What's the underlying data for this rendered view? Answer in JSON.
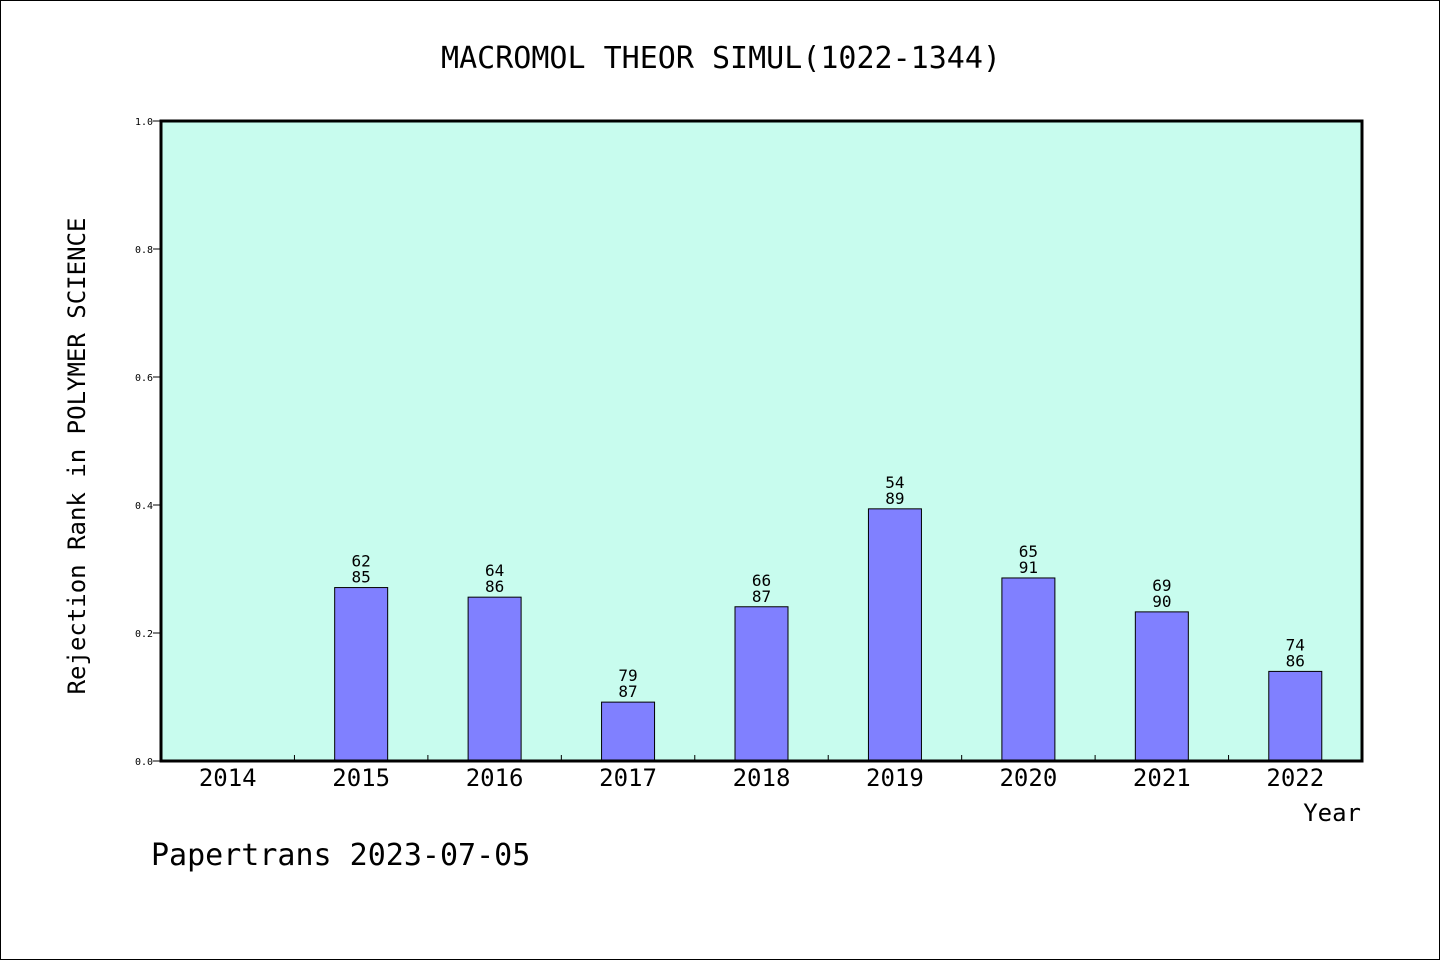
{
  "chart_data": {
    "type": "bar",
    "title": "MACROMOL THEOR SIMUL(1022-1344)",
    "xlabel": "Year",
    "ylabel": "Rejection Rank in POLYMER SCIENCE",
    "ylim": [
      0,
      1
    ],
    "yticks": [
      "0.0",
      "0.2",
      "0.4",
      "0.6",
      "0.8",
      "1.0"
    ],
    "categories": [
      "2014",
      "2015",
      "2016",
      "2017",
      "2018",
      "2019",
      "2020",
      "2021",
      "2022"
    ],
    "values": [
      null,
      0.271,
      0.256,
      0.092,
      0.241,
      0.394,
      0.286,
      0.233,
      0.14
    ],
    "labels_top": [
      "",
      "62",
      "64",
      "79",
      "66",
      "54",
      "65",
      "69",
      "74"
    ],
    "labels_bottom": [
      "",
      "85",
      "86",
      "87",
      "87",
      "89",
      "91",
      "90",
      "86"
    ],
    "grid": false,
    "colors": {
      "plot_background": "#c8fcee",
      "bar_fill": "#8080ff",
      "bar_stroke": "#000000"
    }
  },
  "footer": {
    "text": "Papertrans 2023-07-05"
  }
}
